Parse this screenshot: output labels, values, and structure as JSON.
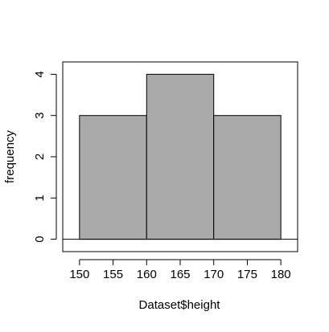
{
  "chart_data": {
    "type": "bar",
    "title": "",
    "xlabel": "Dataset$height",
    "ylabel": "frequency",
    "bins": [
      {
        "from": 150,
        "to": 160,
        "count": 3
      },
      {
        "from": 160,
        "to": 170,
        "count": 4
      },
      {
        "from": 170,
        "to": 180,
        "count": 3
      }
    ],
    "xlim": [
      147.5,
      182.5
    ],
    "ylim": [
      -0.3,
      4.3
    ],
    "x_ticks": [
      "150",
      "155",
      "160",
      "165",
      "170",
      "175",
      "180"
    ],
    "y_ticks": [
      "0",
      "1",
      "2",
      "3",
      "4"
    ],
    "grid": false,
    "bar_fill": "#aaaaaa",
    "bar_stroke": "#000000",
    "baseline": 0
  }
}
